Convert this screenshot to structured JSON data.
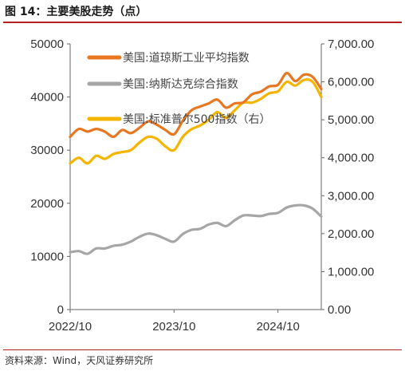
{
  "header": {
    "title": "图 14：主要美股走势（点）"
  },
  "footer": {
    "source": "资料来源：Wind，天风证券研究所"
  },
  "chart_data": {
    "type": "line",
    "title": "图 14：主要美股走势（点）",
    "xlabel": "",
    "ylabel": "",
    "x_ticks": [
      "2022/10",
      "2023/10",
      "2024/10"
    ],
    "x_range": [
      "2022/10",
      "2025/03"
    ],
    "y_left": {
      "range": [
        0,
        50000
      ],
      "ticks": [
        0,
        10000,
        20000,
        30000,
        40000,
        50000
      ],
      "tick_labels": [
        "0",
        "10000",
        "20000",
        "30000",
        "40000",
        "50000"
      ]
    },
    "y_right": {
      "range": [
        0,
        7000
      ],
      "ticks": [
        0,
        1000,
        2000,
        3000,
        4000,
        5000,
        6000,
        7000
      ],
      "tick_labels": [
        "0.00",
        "1,000.00",
        "2,000.00",
        "3,000.00",
        "4,000.00",
        "5,000.00",
        "6,000.00",
        "7,000.00"
      ]
    },
    "grid": false,
    "legend_position": "top-left",
    "series": [
      {
        "name": "美国:道琼斯工业平均指数",
        "axis": "left",
        "color": "#E87722",
        "x": [
          "2022/10",
          "2022/11",
          "2022/12",
          "2023/01",
          "2023/02",
          "2023/03",
          "2023/04",
          "2023/05",
          "2023/06",
          "2023/07",
          "2023/08",
          "2023/09",
          "2023/10",
          "2023/11",
          "2023/12",
          "2024/01",
          "2024/02",
          "2024/03",
          "2024/04",
          "2024/05",
          "2024/06",
          "2024/07",
          "2024/08",
          "2024/09",
          "2024/10",
          "2024/11",
          "2024/12",
          "2025/01",
          "2025/02",
          "2025/03"
        ],
        "values": [
          32500,
          34000,
          33500,
          34000,
          33500,
          32500,
          33800,
          33200,
          34200,
          35400,
          34800,
          33800,
          33000,
          35500,
          37500,
          38200,
          38800,
          39500,
          38000,
          38800,
          39000,
          40500,
          41000,
          42000,
          42300,
          44500,
          43000,
          44200,
          43800,
          41500
        ]
      },
      {
        "name": "美国:纳斯达克综合指数",
        "axis": "left",
        "color": "#A6A6A6",
        "x": [
          "2022/10",
          "2022/11",
          "2022/12",
          "2023/01",
          "2023/02",
          "2023/03",
          "2023/04",
          "2023/05",
          "2023/06",
          "2023/07",
          "2023/08",
          "2023/09",
          "2023/10",
          "2023/11",
          "2023/12",
          "2024/01",
          "2024/02",
          "2024/03",
          "2024/04",
          "2024/05",
          "2024/06",
          "2024/07",
          "2024/08",
          "2024/09",
          "2024/10",
          "2024/11",
          "2024/12",
          "2025/01",
          "2025/02",
          "2025/03"
        ],
        "values": [
          10800,
          11000,
          10500,
          11500,
          11500,
          12000,
          12200,
          12800,
          13700,
          14300,
          14000,
          13300,
          12800,
          14200,
          15000,
          15200,
          16000,
          16300,
          15700,
          16800,
          17700,
          17700,
          17600,
          18000,
          18200,
          19200,
          19600,
          19600,
          19000,
          17500
        ]
      },
      {
        "name": "美国:标准普尔500指数（右）",
        "axis": "right",
        "color": "#F5B400",
        "x": [
          "2022/10",
          "2022/11",
          "2022/12",
          "2023/01",
          "2023/02",
          "2023/03",
          "2023/04",
          "2023/05",
          "2023/06",
          "2023/07",
          "2023/08",
          "2023/09",
          "2023/10",
          "2023/11",
          "2023/12",
          "2024/01",
          "2024/02",
          "2024/03",
          "2024/04",
          "2024/05",
          "2024/06",
          "2024/07",
          "2024/08",
          "2024/09",
          "2024/10",
          "2024/11",
          "2024/12",
          "2025/01",
          "2025/02",
          "2025/03"
        ],
        "values": [
          3850,
          4000,
          3850,
          4050,
          3970,
          4100,
          4150,
          4200,
          4400,
          4550,
          4500,
          4300,
          4200,
          4550,
          4750,
          4850,
          5000,
          5200,
          5050,
          5250,
          5450,
          5450,
          5550,
          5700,
          5750,
          6000,
          5900,
          6050,
          6000,
          5600
        ]
      }
    ]
  }
}
